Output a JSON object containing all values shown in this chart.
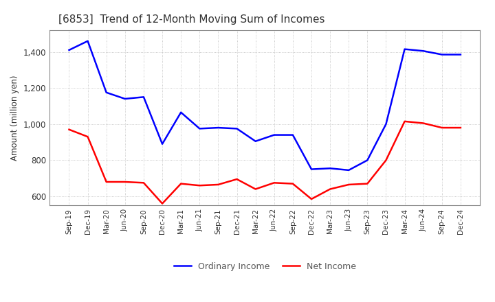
{
  "title": "[6853]  Trend of 12-Month Moving Sum of Incomes",
  "ylabel": "Amount (million yen)",
  "x_labels": [
    "Sep-19",
    "Dec-19",
    "Mar-20",
    "Jun-20",
    "Sep-20",
    "Dec-20",
    "Mar-21",
    "Jun-21",
    "Sep-21",
    "Dec-21",
    "Mar-22",
    "Jun-22",
    "Sep-22",
    "Dec-22",
    "Mar-23",
    "Jun-23",
    "Sep-23",
    "Dec-23",
    "Mar-24",
    "Jun-24",
    "Sep-24",
    "Dec-24"
  ],
  "ordinary_income": [
    1410,
    1460,
    1175,
    1140,
    1150,
    890,
    1065,
    975,
    980,
    975,
    905,
    940,
    940,
    750,
    755,
    745,
    800,
    1000,
    1415,
    1405,
    1385,
    1385
  ],
  "net_income": [
    970,
    930,
    680,
    680,
    675,
    560,
    670,
    660,
    665,
    695,
    640,
    675,
    670,
    585,
    640,
    665,
    670,
    800,
    1015,
    1005,
    980,
    980
  ],
  "ordinary_color": "#0000ff",
  "net_color": "#ff0000",
  "ylim": [
    550,
    1520
  ],
  "yticks": [
    600,
    800,
    1000,
    1200,
    1400
  ],
  "title_color": "#333333",
  "legend_text_color": "#555555"
}
